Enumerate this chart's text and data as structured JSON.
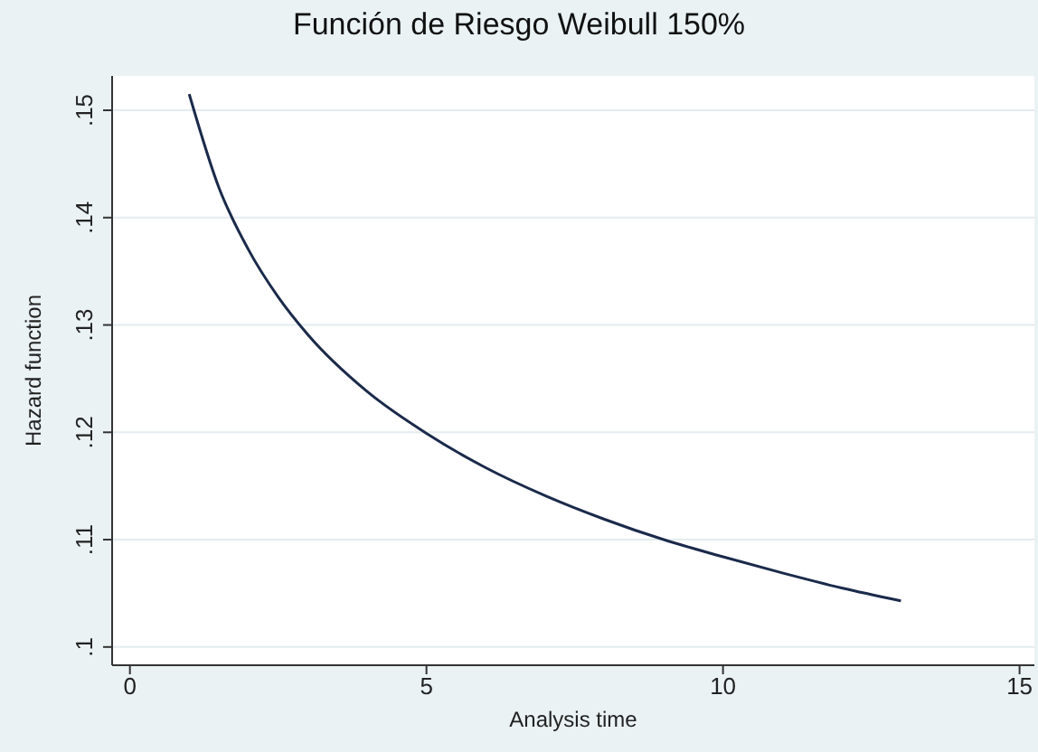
{
  "chart_data": {
    "type": "line",
    "title": "Función de Riesgo Weibull 150%",
    "xlabel": "Analysis time",
    "ylabel": "Hazard function",
    "x": [
      1,
      1.5,
      2,
      2.5,
      3,
      4,
      5,
      6,
      7,
      8,
      9,
      10,
      11,
      12,
      13
    ],
    "series": [
      {
        "color": "#1a2a4a",
        "values": [
          0.1515,
          0.1428,
          0.137,
          0.1326,
          0.1291,
          0.1238,
          0.1199,
          0.1167,
          0.1141,
          0.1119,
          0.11,
          0.1084,
          0.1069,
          0.1055,
          0.1043
        ]
      }
    ],
    "xlim": [
      -0.3,
      15.25
    ],
    "xticks": [
      0,
      5,
      10,
      15
    ],
    "ylim": [
      0.0983,
      0.1532
    ],
    "yticks": [
      {
        "value": 0.1,
        "label": ".1"
      },
      {
        "value": 0.11,
        "label": ".11"
      },
      {
        "value": 0.12,
        "label": ".12"
      },
      {
        "value": 0.13,
        "label": ".13"
      },
      {
        "value": 0.14,
        "label": ".14"
      },
      {
        "value": 0.15,
        "label": ".15"
      }
    ],
    "grid": "y",
    "legend": false,
    "marker": "none",
    "line_style": "solid"
  }
}
